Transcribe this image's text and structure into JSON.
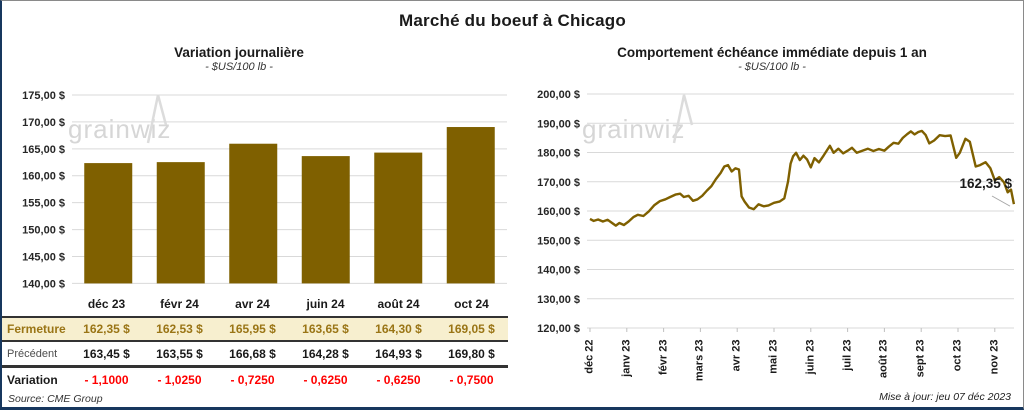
{
  "title": "Marché du boeuf à Chicago",
  "colors": {
    "gold": "#7F6000",
    "cream_row_bg": "#F7EFCF",
    "fermeture_text": "#9A7516",
    "variation_red": "#FF0000",
    "gridline": "#D9D9D9",
    "watermark": "#D6D6D6",
    "frame_border": "#17375E"
  },
  "left_chart": {
    "title": "Variation journalière",
    "subtitle": "- $US/100 lb -",
    "watermark": "grainwiz",
    "y_ticks": [
      "175,00 $",
      "170,00 $",
      "165,00 $",
      "160,00 $",
      "155,00 $",
      "150,00 $",
      "145,00 $",
      "140,00 $"
    ]
  },
  "right_chart": {
    "title": "Comportement échéance immédiate depuis 1 an",
    "subtitle": "- $US/100 lb -",
    "watermark": "grainwiz",
    "y_ticks": [
      "200,00 $",
      "190,00 $",
      "180,00 $",
      "170,00 $",
      "160,00 $",
      "150,00 $",
      "140,00 $",
      "130,00 $",
      "120,00 $"
    ],
    "annotation": "162,35 $",
    "updated": "Mise à jour: jeu 07 déc 2023"
  },
  "table": {
    "columns": [
      "déc 23",
      "févr 24",
      "avr 24",
      "juin 24",
      "août 24",
      "oct 24"
    ],
    "rows": [
      {
        "key": "fermeture",
        "label": "Fermeture",
        "values": [
          "162,35 $",
          "162,53 $",
          "165,95 $",
          "163,65 $",
          "164,30 $",
          "169,05 $"
        ]
      },
      {
        "key": "precedent",
        "label": "Précédent",
        "values": [
          "163,45 $",
          "163,55 $",
          "166,68 $",
          "164,28 $",
          "164,93 $",
          "169,80 $"
        ]
      },
      {
        "key": "variation",
        "label": "Variation",
        "values": [
          "- 1,1000",
          "- 1,0250",
          "- 0,7250",
          "- 0,6250",
          "- 0,6250",
          "- 0,7500"
        ]
      }
    ],
    "source": "Source: CME Group"
  },
  "chart_data": [
    {
      "type": "bar",
      "title": "Variation journalière",
      "units": "$US/100 lb",
      "categories": [
        "déc 23",
        "févr 24",
        "avr 24",
        "juin 24",
        "août 24",
        "oct 24"
      ],
      "values": [
        162.35,
        162.53,
        165.95,
        163.65,
        164.3,
        169.05
      ],
      "ylim": [
        140,
        175
      ],
      "ytick_step": 5,
      "grid": true,
      "legend": "none"
    },
    {
      "type": "line",
      "title": "Comportement échéance immédiate depuis 1 an",
      "units": "$US/100 lb",
      "x_categories": [
        "déc 22",
        "janv 23",
        "févr 23",
        "mars 23",
        "avr 23",
        "mai 23",
        "juin 23",
        "juil 23",
        "août 23",
        "sept 23",
        "oct 23",
        "nov 23"
      ],
      "ylim": [
        120,
        200
      ],
      "ytick_step": 10,
      "grid": true,
      "legend": "none",
      "last_value": 162.35,
      "points": [
        [
          0.0,
          157.3
        ],
        [
          0.1,
          156.6
        ],
        [
          0.22,
          157.1
        ],
        [
          0.35,
          156.4
        ],
        [
          0.48,
          157.0
        ],
        [
          0.6,
          155.9
        ],
        [
          0.7,
          155.0
        ],
        [
          0.8,
          155.9
        ],
        [
          0.92,
          155.2
        ],
        [
          1.05,
          156.4
        ],
        [
          1.18,
          157.9
        ],
        [
          1.3,
          158.7
        ],
        [
          1.45,
          158.3
        ],
        [
          1.6,
          159.9
        ],
        [
          1.75,
          162.0
        ],
        [
          1.9,
          163.4
        ],
        [
          2.05,
          164.0
        ],
        [
          2.18,
          164.8
        ],
        [
          2.32,
          165.6
        ],
        [
          2.45,
          165.9
        ],
        [
          2.55,
          164.8
        ],
        [
          2.68,
          165.2
        ],
        [
          2.8,
          163.5
        ],
        [
          2.92,
          164.0
        ],
        [
          3.05,
          165.2
        ],
        [
          3.18,
          167.0
        ],
        [
          3.3,
          168.5
        ],
        [
          3.42,
          170.9
        ],
        [
          3.55,
          173.0
        ],
        [
          3.65,
          175.2
        ],
        [
          3.75,
          175.7
        ],
        [
          3.85,
          173.5
        ],
        [
          3.95,
          174.6
        ],
        [
          4.05,
          174.2
        ],
        [
          4.12,
          165.0
        ],
        [
          4.2,
          163.2
        ],
        [
          4.32,
          161.2
        ],
        [
          4.45,
          160.6
        ],
        [
          4.58,
          162.3
        ],
        [
          4.72,
          161.6
        ],
        [
          4.85,
          161.9
        ],
        [
          5.0,
          162.8
        ],
        [
          5.15,
          163.2
        ],
        [
          5.28,
          164.3
        ],
        [
          5.38,
          170.0
        ],
        [
          5.45,
          176.2
        ],
        [
          5.52,
          178.7
        ],
        [
          5.6,
          179.9
        ],
        [
          5.7,
          177.4
        ],
        [
          5.8,
          178.9
        ],
        [
          5.9,
          177.6
        ],
        [
          6.0,
          174.9
        ],
        [
          6.1,
          178.1
        ],
        [
          6.22,
          176.6
        ],
        [
          6.35,
          179.0
        ],
        [
          6.45,
          181.0
        ],
        [
          6.52,
          182.3
        ],
        [
          6.62,
          179.9
        ],
        [
          6.75,
          181.3
        ],
        [
          6.88,
          179.7
        ],
        [
          7.0,
          180.6
        ],
        [
          7.12,
          181.6
        ],
        [
          7.25,
          179.9
        ],
        [
          7.4,
          180.6
        ],
        [
          7.55,
          181.3
        ],
        [
          7.7,
          180.5
        ],
        [
          7.85,
          181.2
        ],
        [
          8.0,
          180.6
        ],
        [
          8.12,
          182.0
        ],
        [
          8.25,
          183.3
        ],
        [
          8.38,
          183.0
        ],
        [
          8.5,
          185.0
        ],
        [
          8.62,
          186.3
        ],
        [
          8.72,
          187.2
        ],
        [
          8.82,
          186.2
        ],
        [
          8.92,
          187.0
        ],
        [
          9.02,
          187.4
        ],
        [
          9.12,
          186.0
        ],
        [
          9.22,
          183.1
        ],
        [
          9.35,
          184.1
        ],
        [
          9.5,
          185.9
        ],
        [
          9.65,
          185.6
        ],
        [
          9.8,
          185.8
        ],
        [
          9.95,
          178.2
        ],
        [
          10.05,
          179.9
        ],
        [
          10.2,
          184.7
        ],
        [
          10.32,
          183.7
        ],
        [
          10.48,
          175.2
        ],
        [
          10.6,
          175.7
        ],
        [
          10.75,
          176.7
        ],
        [
          10.88,
          174.6
        ],
        [
          11.0,
          170.5
        ],
        [
          11.12,
          171.6
        ],
        [
          11.25,
          169.8
        ],
        [
          11.35,
          166.4
        ],
        [
          11.44,
          167.3
        ],
        [
          11.52,
          162.35
        ]
      ]
    }
  ]
}
